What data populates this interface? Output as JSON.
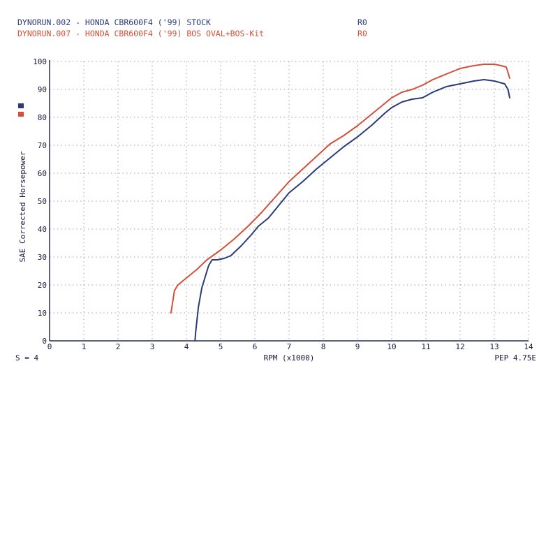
{
  "chart_data": {
    "type": "line",
    "header": [
      {
        "text": "DYNORUN.002 - HONDA CBR600F4 ('99) STOCK",
        "code": "R0",
        "color": "#2b3a78"
      },
      {
        "text": "DYNORUN.007 - HONDA CBR600F4 ('99) BOS OVAL+BOS-Kit",
        "code": "R0",
        "color": "#d2503a"
      }
    ],
    "xlabel": "RPM (x1000)",
    "ylabel": "SAE Corrected Horsepower",
    "xlim": [
      0,
      14
    ],
    "ylim": [
      0,
      100
    ],
    "xticks": [
      0,
      1,
      2,
      3,
      4,
      5,
      6,
      7,
      8,
      9,
      10,
      11,
      12,
      13,
      14
    ],
    "yticks": [
      0,
      10,
      20,
      30,
      40,
      50,
      60,
      70,
      80,
      90,
      100
    ],
    "grid": true,
    "legend": "left-vertical-markers",
    "footer_left": "S = 4",
    "footer_right": "PEP 4.75E",
    "series": [
      {
        "color": "#2b3a78",
        "x": [
          4.25,
          4.27,
          4.35,
          4.45,
          4.55,
          4.65,
          4.75,
          4.9,
          5.1,
          5.3,
          5.6,
          5.9,
          6.1,
          6.4,
          6.7,
          7.0,
          7.4,
          7.8,
          8.2,
          8.6,
          9.0,
          9.4,
          9.8,
          10.0,
          10.3,
          10.6,
          10.9,
          11.2,
          11.6,
          12.0,
          12.4,
          12.7,
          13.0,
          13.3,
          13.4,
          13.45
        ],
        "y": [
          0,
          3,
          12,
          19,
          23,
          27,
          29,
          29,
          29.5,
          30.5,
          34,
          38,
          41,
          44,
          48.5,
          53,
          57,
          61.5,
          65.5,
          69.5,
          73,
          77,
          81.5,
          83.5,
          85.5,
          86.5,
          87,
          89,
          91,
          92,
          93,
          93.5,
          93,
          92,
          90,
          87
        ]
      },
      {
        "color": "#d2503a",
        "x": [
          3.55,
          3.6,
          3.65,
          3.75,
          4.0,
          4.3,
          4.6,
          5.0,
          5.4,
          5.8,
          6.2,
          6.6,
          7.0,
          7.4,
          7.8,
          8.2,
          8.6,
          9.0,
          9.4,
          9.8,
          10.0,
          10.3,
          10.6,
          10.9,
          11.2,
          11.6,
          12.0,
          12.4,
          12.7,
          13.0,
          13.2,
          13.35,
          13.4,
          13.45
        ],
        "y": [
          10,
          14,
          18,
          20,
          22.5,
          25.5,
          29,
          32.5,
          36.5,
          41,
          46,
          51.5,
          57,
          61.5,
          66,
          70.5,
          73.5,
          77,
          81,
          85,
          87,
          89,
          90,
          91.5,
          93.5,
          95.5,
          97.5,
          98.5,
          99,
          99,
          98.5,
          98,
          96,
          94
        ]
      }
    ]
  }
}
